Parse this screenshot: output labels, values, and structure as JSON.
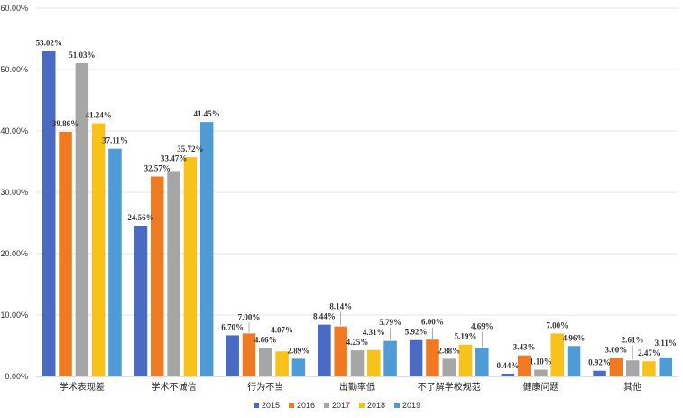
{
  "chart_data": {
    "type": "bar",
    "title": "",
    "xlabel": "",
    "ylabel": "",
    "ylim": [
      0,
      60
    ],
    "y_tick_step": 10,
    "y_tick_format": "percent-2dp",
    "y_ticks": [
      "0.00%",
      "10.00%",
      "20.00%",
      "30.00%",
      "40.00%",
      "50.00%",
      "60.00%"
    ],
    "grid": true,
    "legend_position": "bottom",
    "categories": [
      "学术表现差",
      "学术不诚信",
      "行为不当",
      "出勤率低",
      "不了解学校规范",
      "健康问题",
      "其他"
    ],
    "series": [
      {
        "name": "2015",
        "color": "#4a6bc4",
        "values": [
          53.02,
          24.56,
          6.7,
          8.44,
          5.92,
          0.44,
          0.92
        ],
        "labels": [
          "53.02%",
          "24.56%",
          "6.70%",
          "8.44%",
          "5.92%",
          "0.44%",
          "0.92%"
        ]
      },
      {
        "name": "2016",
        "color": "#f07a22",
        "values": [
          39.86,
          32.57,
          7.0,
          8.14,
          6.0,
          3.43,
          3.0
        ],
        "labels": [
          "39.86%",
          "32.57%",
          "7.00%",
          "8.14%",
          "6.00%",
          "3.43%",
          "3.00%"
        ]
      },
      {
        "name": "2017",
        "color": "#a6a6a6",
        "values": [
          51.03,
          33.47,
          4.66,
          4.25,
          2.88,
          1.1,
          2.61
        ],
        "labels": [
          "51.03%",
          "33.47%",
          "4.66%",
          "4.25%",
          "2.88%",
          "1.10%",
          "2.61%"
        ]
      },
      {
        "name": "2018",
        "color": "#f7c21a",
        "values": [
          41.24,
          35.72,
          4.07,
          4.31,
          5.19,
          7.0,
          2.47
        ],
        "labels": [
          "41.24%",
          "35.72%",
          "4.07%",
          "4.31%",
          "5.19%",
          "7.00%",
          "2.47%"
        ]
      },
      {
        "name": "2019",
        "color": "#4e9bd6",
        "values": [
          37.11,
          41.45,
          2.89,
          5.79,
          4.69,
          4.96,
          3.11
        ],
        "labels": [
          "37.11%",
          "41.45%",
          "2.89%",
          "5.79%",
          "4.69%",
          "4.96%",
          "3.11%"
        ]
      }
    ]
  }
}
